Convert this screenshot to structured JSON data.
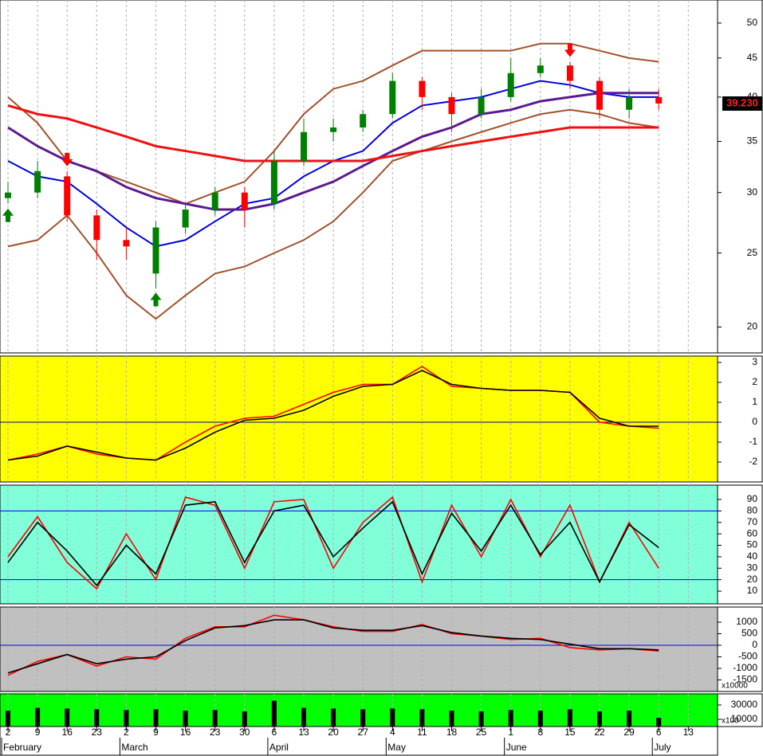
{
  "chart_data": [
    {
      "type": "candlestick",
      "log_scale": true,
      "background": "#ffffff",
      "categories": [
        "2",
        "9",
        "16",
        "23",
        "2",
        "9",
        "16",
        "23",
        "30",
        "6",
        "13",
        "20",
        "27",
        "4",
        "11",
        "18",
        "25",
        "1",
        "8",
        "15",
        "22",
        "29",
        "6",
        "13"
      ],
      "months": [
        {
          "label": "February",
          "index": 0
        },
        {
          "label": "March",
          "index": 4
        },
        {
          "label": "April",
          "index": 9
        },
        {
          "label": "May",
          "index": 13
        },
        {
          "label": "June",
          "index": 17
        },
        {
          "label": "July",
          "index": 22
        }
      ],
      "ylim": [
        18.5,
        53.6
      ],
      "yticks": [
        20,
        25,
        30,
        35,
        40,
        45,
        50
      ],
      "open": [
        29.5,
        30,
        31.5,
        28,
        26,
        23.5,
        27,
        28.5,
        30,
        29,
        33,
        36,
        36.5,
        38,
        42,
        40,
        38,
        40,
        43,
        44,
        42,
        38.5,
        40,
        null
      ],
      "high": [
        31,
        33,
        32,
        28.5,
        27,
        27.5,
        29,
        30.5,
        30.5,
        34,
        37.5,
        37.5,
        38.5,
        43,
        42.5,
        40.5,
        41,
        45,
        45,
        44.5,
        42.5,
        41,
        41,
        null
      ],
      "low": [
        29,
        29.5,
        27.5,
        24.5,
        24.5,
        22.5,
        26.5,
        28,
        27,
        28.5,
        32.5,
        35,
        36,
        37.5,
        38.5,
        36,
        37.5,
        39.5,
        42.5,
        41,
        37.5,
        37.5,
        38.5,
        null
      ],
      "close": [
        30,
        32,
        28,
        26,
        25.5,
        27,
        28.5,
        30,
        28.5,
        33,
        36,
        36.5,
        38,
        42,
        40,
        38,
        40,
        43,
        44,
        42,
        38.5,
        40,
        39.23,
        null
      ],
      "up_color": "#008000",
      "down_color": "#ff0000",
      "last_price": {
        "value": 39.23,
        "label": "39.230"
      },
      "buy_signals": [
        0,
        5
      ],
      "sell_signals": [
        2,
        19
      ],
      "series": [
        {
          "color": "#a0522d",
          "width": 2,
          "values": [
            40,
            37,
            33,
            32,
            31,
            30,
            29,
            30,
            31,
            34,
            38,
            41,
            42,
            44,
            46,
            46,
            46,
            46,
            47,
            47,
            46,
            45,
            44.5,
            null
          ]
        },
        {
          "color": "#a0522d",
          "width": 2,
          "values": [
            25.5,
            26,
            28,
            25,
            22,
            20.5,
            22,
            23.5,
            24,
            25,
            26,
            27.5,
            30,
            33,
            34,
            35,
            36,
            37,
            38,
            38.5,
            38,
            37,
            36.5,
            null
          ]
        },
        {
          "color": "#0000e0",
          "width": 2,
          "values": [
            33,
            31.5,
            31,
            29,
            27,
            25.5,
            26,
            27.5,
            29,
            29.5,
            31.5,
            33,
            34,
            37,
            39,
            39.5,
            40,
            41,
            42,
            41.5,
            40.5,
            40,
            40,
            null
          ]
        },
        {
          "color": "#5b1a8f",
          "width": 3,
          "values": [
            36.5,
            34.5,
            33,
            32,
            30.5,
            29.5,
            29,
            28.5,
            28.5,
            29,
            30,
            31,
            32.5,
            34,
            35.5,
            36.5,
            38,
            38.5,
            39.5,
            40,
            40.5,
            40.5,
            40.5,
            null
          ]
        },
        {
          "color": "#ee1111",
          "width": 3,
          "values": [
            39,
            38,
            37.5,
            36.5,
            35.5,
            34.5,
            34,
            33.5,
            33,
            33,
            33,
            33,
            33,
            33.5,
            34,
            34.5,
            35,
            35.5,
            36,
            36.5,
            36.5,
            36.5,
            36.5,
            null
          ]
        }
      ]
    },
    {
      "type": "line",
      "background": "#ffff00",
      "ylim": [
        -3,
        3.32
      ],
      "yticks": [
        -2,
        -1,
        0,
        1,
        2,
        3
      ],
      "levels": [
        0
      ],
      "level_color": "#000080",
      "series": [
        {
          "color": "#ff0000",
          "values": [
            -1.9,
            -1.6,
            -1.2,
            -1.6,
            -1.8,
            -1.9,
            -1.0,
            -0.2,
            0.2,
            0.3,
            0.9,
            1.5,
            1.9,
            1.9,
            2.8,
            1.8,
            1.7,
            1.6,
            1.6,
            1.5,
            0.0,
            -0.2,
            -0.3,
            null
          ]
        },
        {
          "color": "#000000",
          "values": [
            -1.9,
            -1.7,
            -1.2,
            -1.5,
            -1.8,
            -1.9,
            -1.3,
            -0.5,
            0.1,
            0.2,
            0.6,
            1.3,
            1.8,
            1.9,
            2.6,
            1.9,
            1.7,
            1.6,
            1.6,
            1.5,
            0.2,
            -0.2,
            -0.2,
            null
          ]
        }
      ]
    },
    {
      "type": "line",
      "background": "#80ffd8",
      "ylim": [
        -1.1,
        102.5
      ],
      "yticks": [
        10,
        20,
        30,
        40,
        50,
        60,
        70,
        80,
        90
      ],
      "levels": [
        20,
        80
      ],
      "level_color": "#0000ff",
      "series": [
        {
          "color": "#ff0000",
          "values": [
            40,
            75,
            35,
            12,
            60,
            20,
            92,
            85,
            30,
            88,
            90,
            30,
            70,
            92,
            18,
            85,
            40,
            90,
            40,
            85,
            18,
            70,
            30,
            null
          ]
        },
        {
          "color": "#000000",
          "values": [
            35,
            70,
            45,
            15,
            50,
            25,
            85,
            88,
            35,
            80,
            85,
            40,
            65,
            88,
            25,
            78,
            45,
            85,
            42,
            70,
            18,
            68,
            48,
            null
          ]
        }
      ]
    },
    {
      "type": "line",
      "background": "#c0c0c0",
      "ylim": [
        -2000,
        1655
      ],
      "yticks": [
        -1500,
        -1000,
        -500,
        0,
        500,
        1000
      ],
      "levels": [
        0
      ],
      "level_color": "#0000ff",
      "scale_note": "x10000",
      "series": [
        {
          "color": "#ff0000",
          "values": [
            -1300,
            -700,
            -400,
            -900,
            -500,
            -600,
            300,
            800,
            800,
            1300,
            1100,
            800,
            600,
            600,
            900,
            500,
            400,
            250,
            300,
            -100,
            -200,
            -150,
            -250,
            null
          ]
        },
        {
          "color": "#000000",
          "values": [
            -1200,
            -800,
            -400,
            -800,
            -600,
            -500,
            200,
            750,
            850,
            1100,
            1100,
            750,
            650,
            650,
            850,
            550,
            400,
            300,
            250,
            50,
            -150,
            -150,
            -200,
            null
          ]
        }
      ]
    },
    {
      "type": "volume",
      "background": "#00ff00",
      "ylim": [
        0,
        45500
      ],
      "yticks": [
        10000,
        30000
      ],
      "scale_note": "x100",
      "color": "#000000",
      "values": [
        22000,
        26000,
        25000,
        24000,
        23000,
        24000,
        22000,
        23000,
        21000,
        36000,
        26000,
        25000,
        24000,
        25000,
        24000,
        22000,
        21000,
        23000,
        22000,
        24000,
        21000,
        22000,
        12000,
        null
      ]
    }
  ]
}
